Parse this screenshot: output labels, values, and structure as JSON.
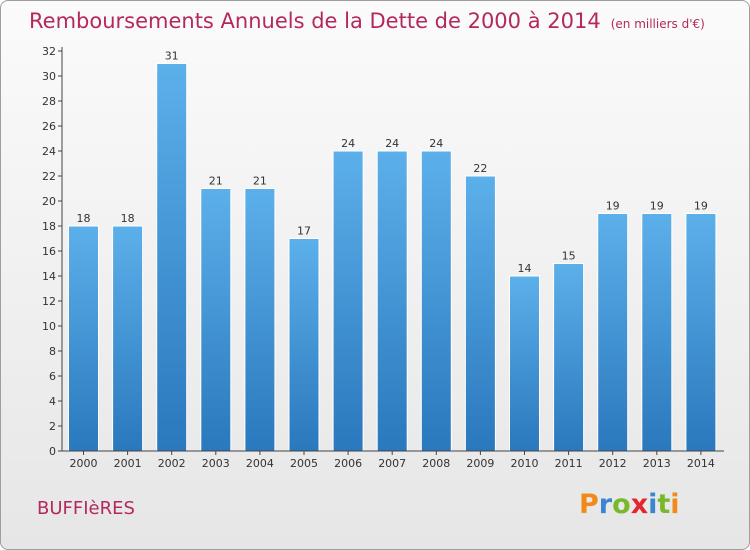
{
  "header": {
    "title": "Remboursements Annuels de la Dette de 2000 à 2014",
    "unit": "(en milliers d'€)"
  },
  "footer": {
    "commune": "BUFFIèRES",
    "logo": "Proxiti",
    "logo_letters": [
      "P",
      "r",
      "o",
      "x",
      "i",
      "t",
      "i"
    ]
  },
  "colors": {
    "title": "#b5285e",
    "bar_top": "#5cb0ea",
    "bar_bottom": "#2a78bd"
  },
  "chart_data": {
    "type": "bar",
    "categories": [
      "2000",
      "2001",
      "2002",
      "2003",
      "2004",
      "2005",
      "2006",
      "2007",
      "2008",
      "2009",
      "2010",
      "2011",
      "2012",
      "2013",
      "2014"
    ],
    "values": [
      18,
      18,
      31,
      21,
      21,
      17,
      24,
      24,
      24,
      22,
      14,
      15,
      19,
      19,
      19
    ],
    "ylim": [
      0,
      32
    ],
    "yticks": [
      0,
      2,
      4,
      6,
      8,
      10,
      12,
      14,
      16,
      18,
      20,
      22,
      24,
      26,
      28,
      30,
      32
    ],
    "grid": false,
    "data_labels": true
  }
}
